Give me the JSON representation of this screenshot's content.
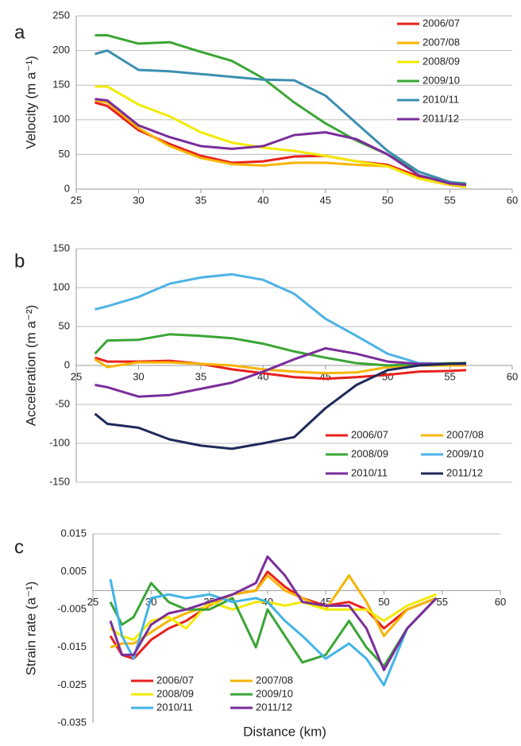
{
  "chart_data": [
    {
      "type": "line",
      "panel_label": "a",
      "y_label": "Velocity (m a⁻¹)",
      "x": [
        26.5,
        27.5,
        30,
        32.5,
        35,
        37.5,
        40,
        42.5,
        45,
        47.5,
        50,
        52.5,
        55,
        56.3
      ],
      "series": [
        {
          "name": "2006/07",
          "color": "#e8211c",
          "values": [
            125,
            120,
            85,
            65,
            48,
            38,
            40,
            47,
            48,
            40,
            35,
            18,
            8,
            5
          ]
        },
        {
          "name": "2007/08",
          "color": "#f7b500",
          "values": [
            128,
            125,
            88,
            62,
            45,
            36,
            34,
            38,
            38,
            35,
            33,
            15,
            6,
            3
          ]
        },
        {
          "name": "2008/09",
          "color": "#f2ea00",
          "values": [
            148,
            148,
            122,
            105,
            82,
            67,
            60,
            55,
            48,
            40,
            33,
            15,
            7,
            4
          ]
        },
        {
          "name": "2009/10",
          "color": "#3aa535",
          "values": [
            222,
            222,
            210,
            212,
            198,
            185,
            160,
            125,
            95,
            70,
            50,
            25,
            10,
            8
          ]
        },
        {
          "name": "2010/11",
          "color": "#3c8fb0",
          "values": [
            195,
            200,
            172,
            170,
            166,
            162,
            158,
            157,
            135,
            95,
            55,
            25,
            10,
            7
          ]
        },
        {
          "name": "2011/12",
          "color": "#7b2d9a",
          "values": [
            130,
            128,
            92,
            75,
            62,
            58,
            62,
            78,
            82,
            72,
            50,
            20,
            8,
            6
          ]
        }
      ],
      "xlim": [
        25,
        60
      ],
      "xticks": [
        25,
        30,
        35,
        40,
        45,
        50,
        55,
        60
      ],
      "ylim": [
        0,
        250
      ],
      "yticks": [
        0,
        50,
        100,
        150,
        200,
        250
      ],
      "grid": true,
      "legend": "upper right",
      "legend_columns": 1
    },
    {
      "type": "line",
      "panel_label": "b",
      "y_label": "Acceleration (m a⁻²)",
      "x": [
        26.5,
        27.5,
        30,
        32.5,
        35,
        37.5,
        40,
        42.5,
        45,
        47.5,
        50,
        52.5,
        55,
        56.3
      ],
      "series": [
        {
          "name": "2006/07",
          "color": "#e8211c",
          "values": [
            10,
            5,
            5,
            6,
            2,
            -5,
            -10,
            -15,
            -17,
            -15,
            -12,
            -8,
            -7,
            -6
          ]
        },
        {
          "name": "2007/08",
          "color": "#f7b500",
          "values": [
            8,
            -2,
            4,
            4,
            2,
            0,
            -5,
            -8,
            -10,
            -9,
            -2,
            0,
            0,
            0
          ]
        },
        {
          "name": "2008/09",
          "color": "#3aa535",
          "values": [
            15,
            32,
            33,
            40,
            38,
            35,
            28,
            18,
            10,
            3,
            0,
            2,
            3,
            3
          ]
        },
        {
          "name": "2009/10",
          "color": "#4db3e6",
          "values": [
            72,
            76,
            88,
            105,
            113,
            117,
            110,
            92,
            60,
            38,
            15,
            3,
            2,
            2
          ]
        },
        {
          "name": "2010/11",
          "color": "#7b2d9a",
          "values": [
            -25,
            -28,
            -40,
            -38,
            -30,
            -22,
            -8,
            8,
            22,
            15,
            5,
            2,
            2,
            2
          ]
        },
        {
          "name": "2011/12",
          "color": "#1f2a5a",
          "values": [
            -62,
            -75,
            -80,
            -95,
            -103,
            -107,
            -100,
            -92,
            -55,
            -25,
            -6,
            0,
            2,
            3
          ]
        }
      ],
      "xlim": [
        25,
        60
      ],
      "xticks": [
        25,
        30,
        35,
        40,
        45,
        50,
        55,
        60
      ],
      "ylim": [
        -150,
        150
      ],
      "yticks": [
        -150,
        -100,
        -50,
        0,
        50,
        100,
        150
      ],
      "grid": true,
      "legend": "lower right",
      "legend_columns": 2
    },
    {
      "type": "line",
      "panel_label": "c",
      "y_label": "Strain rate (a⁻¹)",
      "x_label": "Distance (km)",
      "x": [
        26.5,
        27.5,
        28.5,
        30,
        31.5,
        33,
        35,
        37,
        39,
        40,
        41.5,
        43,
        45,
        47,
        48.5,
        50,
        52,
        54.5
      ],
      "series": [
        {
          "name": "2006/07",
          "color": "#e8211c",
          "values": [
            -0.012,
            -0.017,
            -0.018,
            -0.013,
            -0.01,
            -0.008,
            -0.004,
            -0.001,
            0,
            0.005,
            0.001,
            -0.002,
            -0.004,
            -0.003,
            -0.005,
            -0.01,
            -0.005,
            -0.002
          ]
        },
        {
          "name": "2007/08",
          "color": "#f7b500",
          "values": [
            -0.015,
            -0.014,
            -0.014,
            -0.011,
            -0.008,
            -0.006,
            -0.004,
            -0.001,
            0,
            0.004,
            0,
            -0.002,
            -0.005,
            0.004,
            -0.003,
            -0.012,
            -0.005,
            -0.002
          ]
        },
        {
          "name": "2008/09",
          "color": "#f2ea00",
          "values": [
            -0.01,
            -0.012,
            -0.013,
            -0.008,
            -0.007,
            -0.01,
            -0.003,
            -0.005,
            -0.003,
            -0.003,
            -0.004,
            -0.003,
            -0.005,
            -0.005,
            -0.005,
            -0.008,
            -0.004,
            -0.001
          ]
        },
        {
          "name": "2009/10",
          "color": "#3aa535",
          "values": [
            -0.003,
            -0.009,
            -0.007,
            0.002,
            -0.003,
            -0.005,
            -0.005,
            -0.002,
            -0.015,
            -0.005,
            -0.012,
            -0.019,
            -0.017,
            -0.008,
            -0.015,
            -0.02,
            -0.01,
            -0.002
          ]
        },
        {
          "name": "2010/11",
          "color": "#41b4e8",
          "values": [
            0.003,
            -0.012,
            -0.018,
            -0.002,
            -0.001,
            -0.002,
            -0.001,
            -0.003,
            -0.002,
            -0.003,
            -0.008,
            -0.012,
            -0.018,
            -0.014,
            -0.018,
            -0.025,
            -0.01,
            -0.002
          ]
        },
        {
          "name": "2011/12",
          "color": "#7b2d9a",
          "values": [
            -0.008,
            -0.017,
            -0.017,
            -0.009,
            -0.006,
            -0.005,
            -0.003,
            -0.001,
            0.002,
            0.009,
            0.004,
            -0.003,
            -0.004,
            -0.004,
            -0.01,
            -0.021,
            -0.01,
            -0.002
          ]
        }
      ],
      "xlim": [
        25,
        60
      ],
      "xticks": [
        25,
        30,
        35,
        40,
        45,
        50,
        55,
        60
      ],
      "ylim": [
        -0.035,
        0.015
      ],
      "yticks": [
        -0.035,
        -0.025,
        -0.015,
        -0.005,
        0.005,
        0.015
      ],
      "grid": false,
      "legend": "lower left",
      "legend_columns": 2
    }
  ]
}
